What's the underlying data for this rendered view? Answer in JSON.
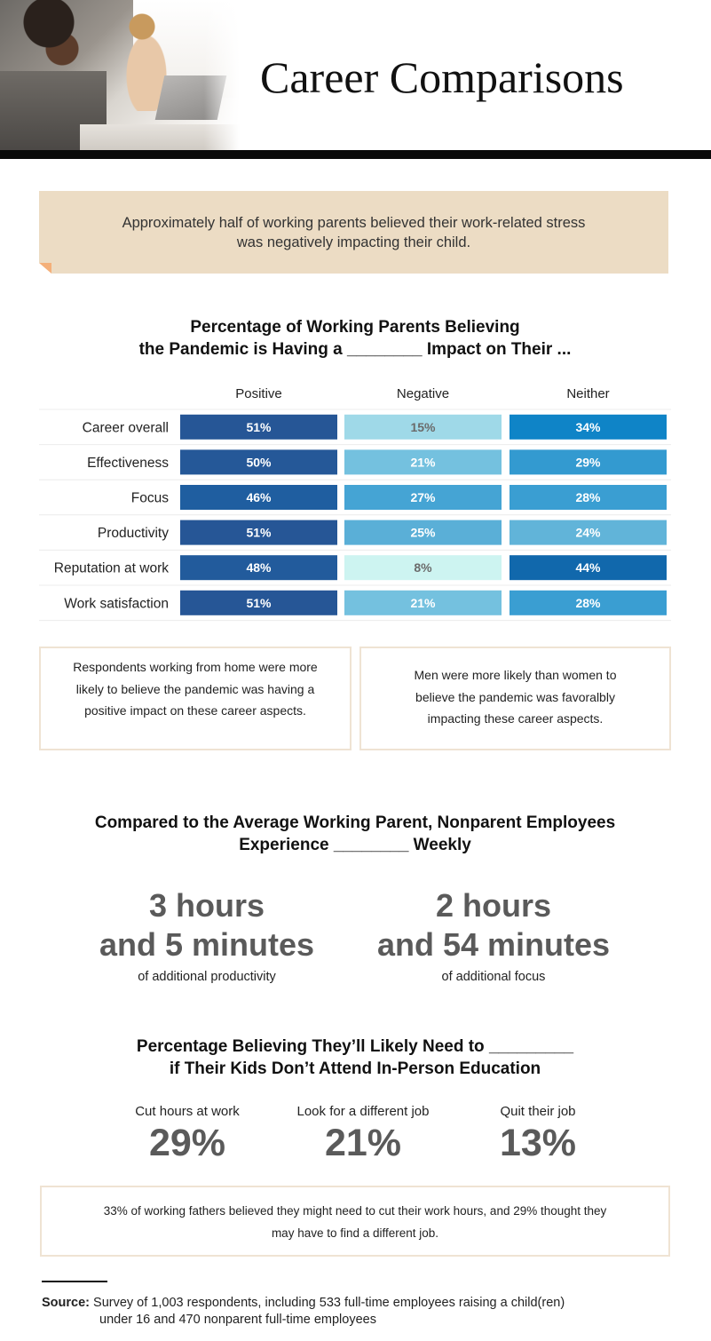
{
  "header": {
    "title": "Career Comparisons"
  },
  "callout": {
    "text_line1": "Approximately half of working parents believed their work-related stress",
    "text_line2": "was negatively impacting their child."
  },
  "colors": {
    "positive_dark": "#1f4f8f",
    "neither_dark": "#0f6db0",
    "light_cyan": "#cdf4f1",
    "callout_bg": "#ecdcc4",
    "stat_gray": "#5a5a5a"
  },
  "chart_data": [
    {
      "type": "table",
      "title_line1": "Percentage of Working Parents Believing",
      "title_line2": "the Pandemic is Having a ________ Impact on Their ...",
      "columns": [
        "Positive",
        "Negative",
        "Neither"
      ],
      "rows": [
        "Career overall",
        "Effectiveness",
        "Focus",
        "Productivity",
        "Reputation at work",
        "Work satisfaction"
      ],
      "series": [
        {
          "name": "Positive",
          "values": [
            51,
            50,
            46,
            51,
            48,
            51
          ]
        },
        {
          "name": "Negative",
          "values": [
            15,
            21,
            27,
            25,
            8,
            21
          ]
        },
        {
          "name": "Neither",
          "values": [
            34,
            29,
            28,
            24,
            44,
            28
          ]
        }
      ],
      "value_suffix": "%",
      "encoding": "heatmap-shaded cells, darker blue = higher percentage"
    }
  ],
  "notes": {
    "left": "Respondents working from home were more likely to believe the pandemic was having a positive impact on these career aspects.",
    "right": "Men were more likely than women to believe the pandemic was  favoralbly impacting these career aspects.",
    "wide": "33% of working fathers believed they might need to cut their work hours, and 29% thought they may have to find a different job."
  },
  "section2": {
    "title_line1": "Compared to the Average Working Parent, Nonparent Employees",
    "title_line2": "Experience ________ Weekly",
    "stat1": {
      "line1": "3 hours",
      "line2": "and 5 minutes",
      "caption": "of additional productivity"
    },
    "stat2": {
      "line1": "2 hours",
      "line2": "and 54 minutes",
      "caption": "of additional focus"
    }
  },
  "section3": {
    "title_line1": "Percentage Believing They’ll Likely Need to _________",
    "title_line2": "if Their Kids Don’t Attend In-Person Education",
    "items": [
      {
        "label": "Cut hours at work",
        "value": "29%"
      },
      {
        "label": "Look for a different job",
        "value": "21%"
      },
      {
        "label": "Quit their job",
        "value": "13%"
      }
    ]
  },
  "source": {
    "label": "Source:",
    "line1": " Survey of 1,003 respondents, including 533 full-time employees raising a child(ren)",
    "line2": "under 16 and 470 nonparent full-time employees"
  }
}
